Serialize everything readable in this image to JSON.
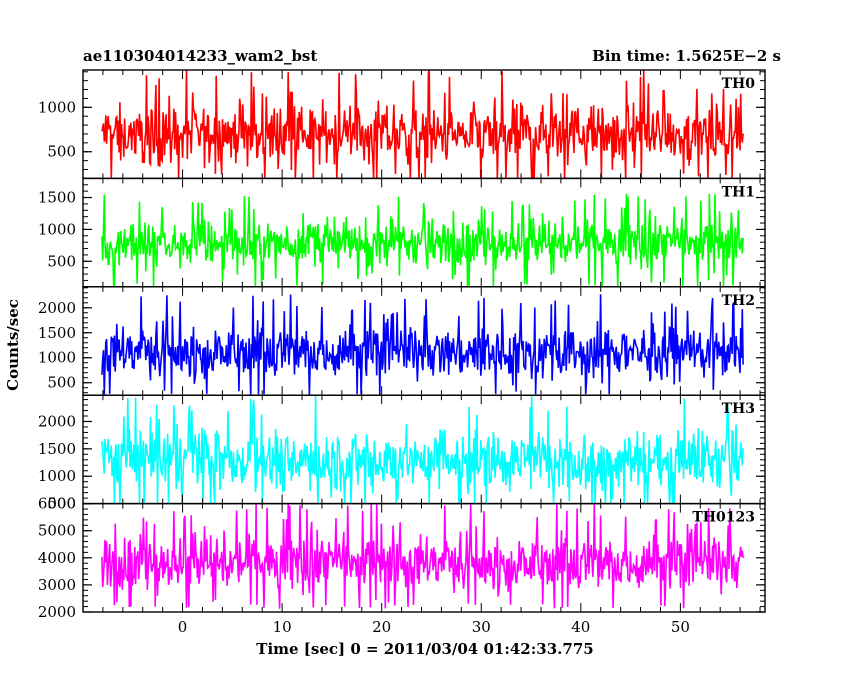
{
  "header": {
    "left": "ae110304014233_wam2_bst",
    "right": "Bin time: 1.5625E−2 s"
  },
  "axes": {
    "xlabel": "Time [sec] 0 = 2011/03/04 01:42:33.775",
    "ylabel": "Counts/sec"
  },
  "chart_data": {
    "type": "line",
    "x_range": [
      -8.1,
      56.3
    ],
    "xlim": [
      -10,
      58.5
    ],
    "x_ticks": [
      0,
      10,
      20,
      30,
      40,
      50
    ],
    "series": [
      {
        "name": "TH0",
        "color": "#ff0000",
        "mean": 700,
        "amp": 480,
        "floor": 130,
        "ylim": [
          200,
          1420
        ],
        "ticks": [
          500,
          1000
        ]
      },
      {
        "name": "TH1",
        "color": "#00ff00",
        "mean": 780,
        "amp": 520,
        "floor": 120,
        "ylim": [
          100,
          1800
        ],
        "ticks": [
          500,
          1000,
          1500
        ]
      },
      {
        "name": "TH2",
        "color": "#0000ff",
        "mean": 1120,
        "amp": 780,
        "floor": 280,
        "ylim": [
          250,
          2420
        ],
        "ticks": [
          500,
          1000,
          1500,
          2000
        ]
      },
      {
        "name": "TH3",
        "color": "#00ffff",
        "mean": 1300,
        "amp": 850,
        "floor": 380,
        "ylim": [
          500,
          2480
        ],
        "ticks": [
          500,
          1000,
          1500,
          2000
        ]
      },
      {
        "name": "TH0123",
        "color": "#ff00ff",
        "mean": 3800,
        "amp": 1500,
        "floor": 2300,
        "ylim": [
          2000,
          6000
        ],
        "ticks": [
          2000,
          3000,
          4000,
          5000,
          6000
        ]
      }
    ]
  }
}
